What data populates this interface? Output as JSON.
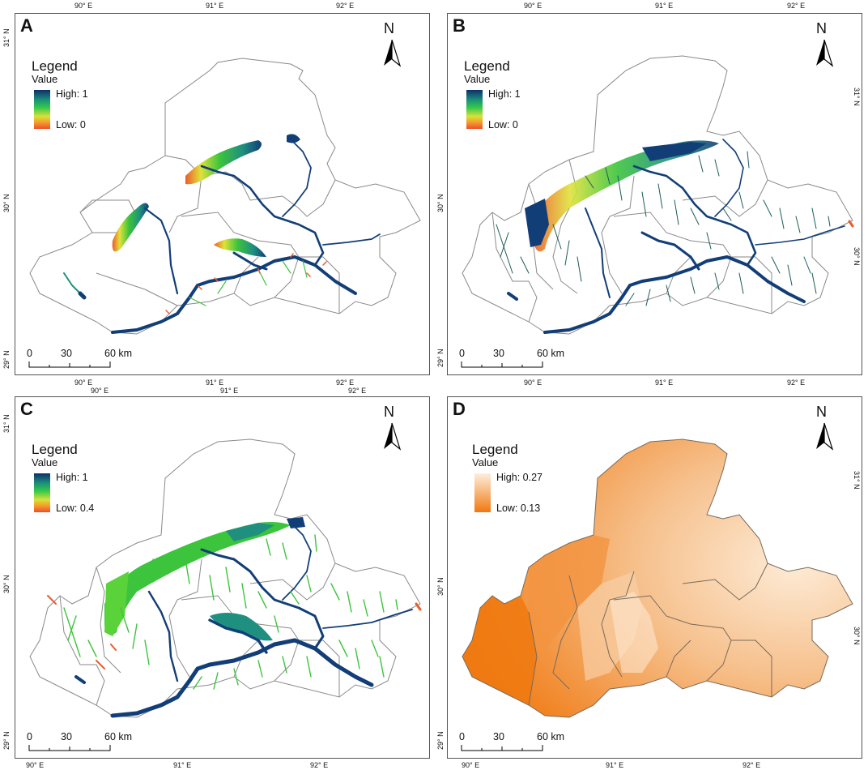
{
  "panels": [
    {
      "letter": "A",
      "legend_title": "Legend",
      "legend_subtitle": "Value",
      "high": "High: 1",
      "low": "Low: 0"
    },
    {
      "letter": "B",
      "legend_title": "Legend",
      "legend_subtitle": "Value",
      "high": "High: 1",
      "low": "Low: 0"
    },
    {
      "letter": "C",
      "legend_title": "Legend",
      "legend_subtitle": "Value",
      "high": "High: 1",
      "low": "Low: 0.4"
    },
    {
      "letter": "D",
      "legend_title": "Legend",
      "legend_subtitle": "Value",
      "high": "High: 0.27",
      "low": "Low: 0.13"
    }
  ],
  "north_label": "N",
  "scale_bar": {
    "zero": "0",
    "mid": "30",
    "end": "60 km"
  },
  "ticks": {
    "lon_90": "90° E",
    "lon_91": "91° E",
    "lon_92": "92° E",
    "lat_29": "29° N",
    "lat_30": "30° N",
    "lat_31": "31° N"
  },
  "colors": {
    "boundary": "#8a8a8a",
    "river_deep": "#123e78",
    "river_mid": "#1f8f80",
    "river_green": "#3cc43c",
    "river_yellow": "#dfe23a",
    "river_red": "#ee5a2a",
    "terrain_dark": "#f07a12",
    "terrain_light": "#fdebd6"
  }
}
